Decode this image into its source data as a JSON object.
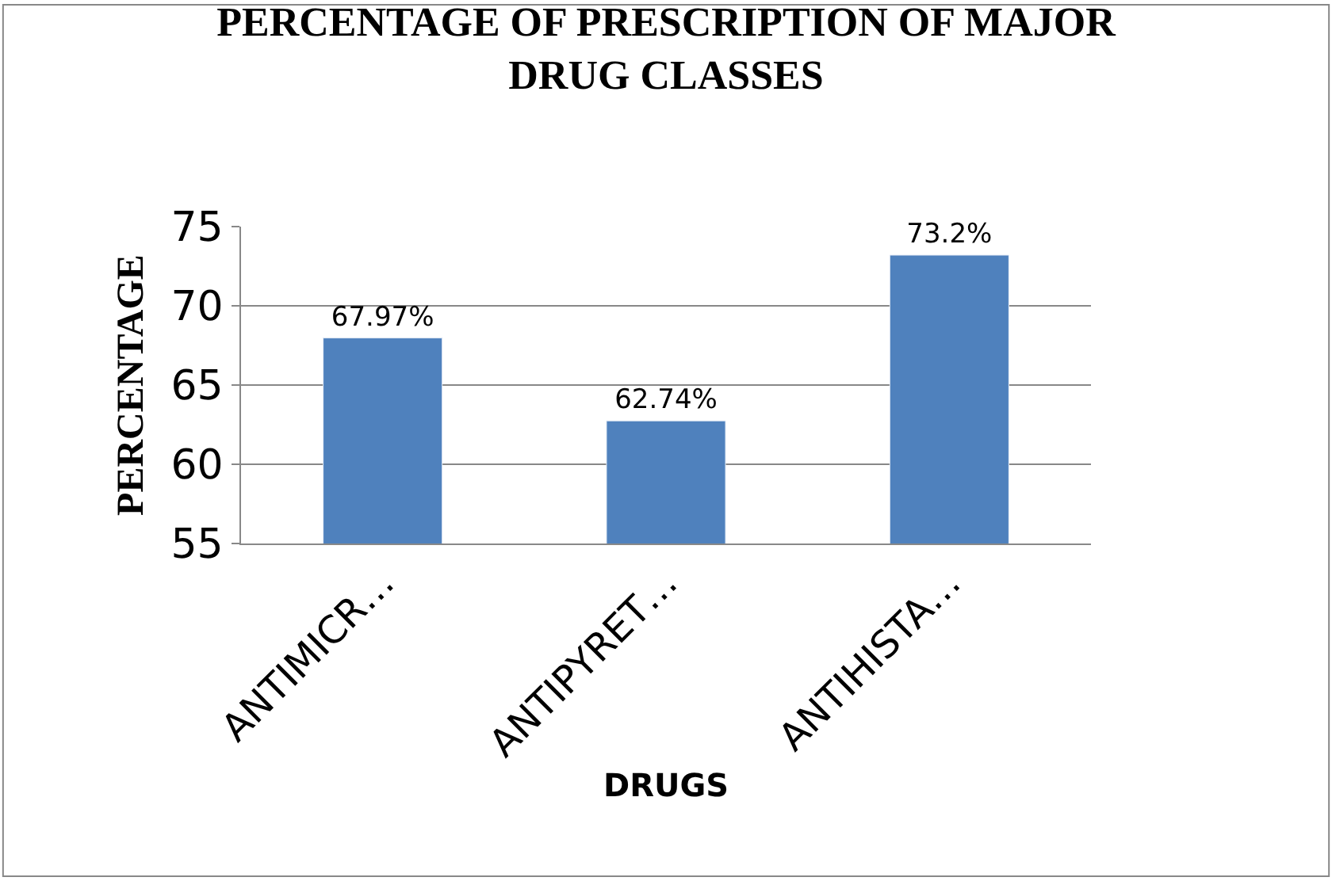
{
  "chart_data": {
    "type": "bar",
    "title": "PERCENTAGE OF PRESCRIPTION OF MAJOR DRUG CLASSES",
    "xlabel": "DRUGS",
    "ylabel": "PERCENTAGE",
    "categories": [
      "ANTIMICR…",
      "ANTIPYRET…",
      "ANTIHISTA…"
    ],
    "values": [
      67.97,
      62.74,
      73.2
    ],
    "value_labels": [
      "67.97%",
      "62.74%",
      "73.2%"
    ],
    "color": "#4f81bd",
    "ylim": [
      55,
      75
    ],
    "yticks": [
      55,
      60,
      65,
      70,
      75
    ],
    "grid": "y",
    "legend": false
  }
}
